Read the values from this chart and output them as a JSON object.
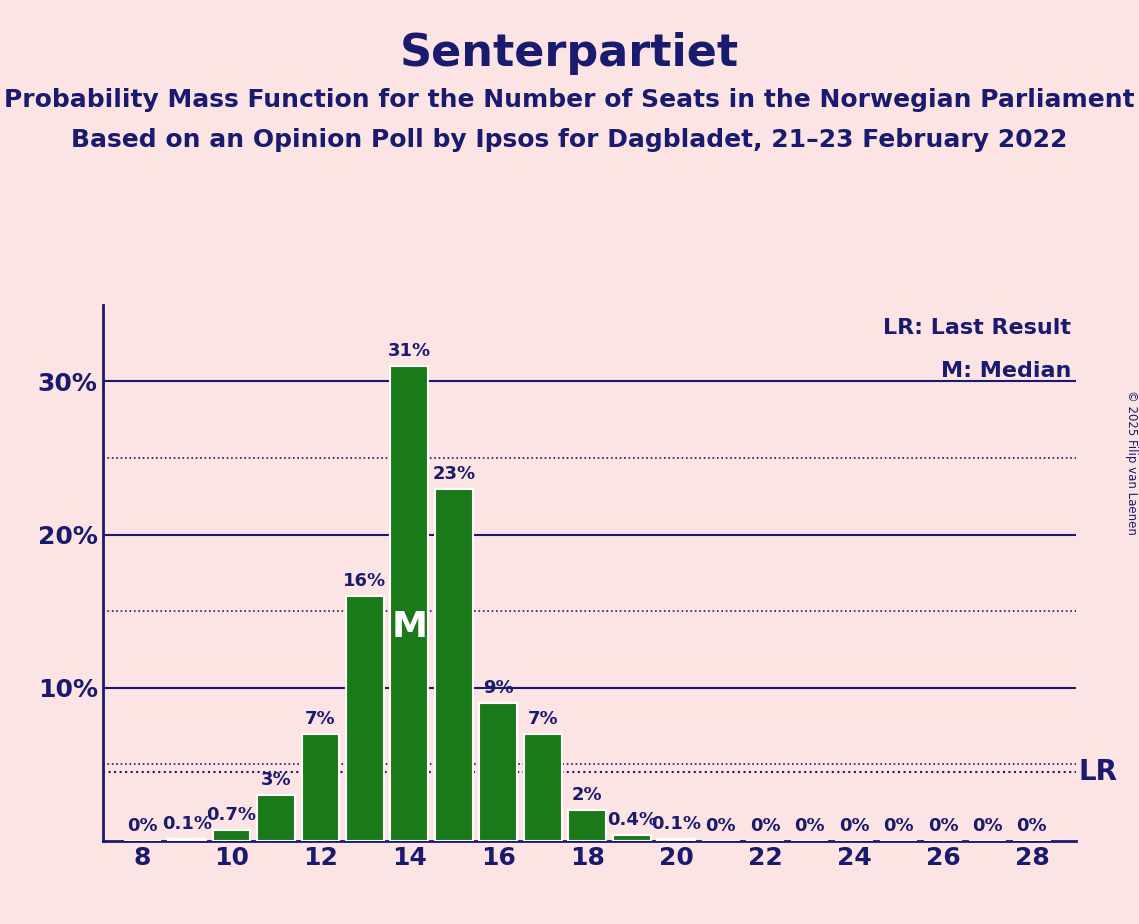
{
  "title": "Senterpartiet",
  "subtitle1": "Probability Mass Function for the Number of Seats in the Norwegian Parliament",
  "subtitle2": "Based on an Opinion Poll by Ipsos for Dagbladet, 21–23 February 2022",
  "copyright": "© 2025 Filip van Laenen",
  "background_color": "#fce4e4",
  "bar_color": "#1a7a1a",
  "bar_edge_color": "#ffffff",
  "title_color": "#1a1a6e",
  "axis_color": "#1a1a6e",
  "seats": [
    8,
    9,
    10,
    11,
    12,
    13,
    14,
    15,
    16,
    17,
    18,
    19,
    20,
    21,
    22,
    23,
    24,
    25,
    26,
    27,
    28
  ],
  "probabilities": [
    0.0,
    0.1,
    0.7,
    3.0,
    7.0,
    16.0,
    31.0,
    23.0,
    9.0,
    7.0,
    2.0,
    0.4,
    0.1,
    0.0,
    0.0,
    0.0,
    0.0,
    0.0,
    0.0,
    0.0,
    0.0
  ],
  "labels": [
    "0%",
    "0.1%",
    "0.7%",
    "3%",
    "7%",
    "16%",
    "31%",
    "23%",
    "9%",
    "7%",
    "2%",
    "0.4%",
    "0.1%",
    "0%",
    "0%",
    "0%",
    "0%",
    "0%",
    "0%",
    "0%",
    "0%"
  ],
  "median_seat": 14,
  "lr_value": 4.5,
  "ylim": [
    0,
    35
  ],
  "solid_gridlines": [
    10,
    20,
    30
  ],
  "dotted_gridlines": [
    5,
    15,
    25
  ],
  "legend_lr": "LR: Last Result",
  "legend_m": "M: Median",
  "bar_label_fontsize": 13,
  "title_fontsize": 32,
  "subtitle_fontsize": 18,
  "tick_fontsize": 18
}
